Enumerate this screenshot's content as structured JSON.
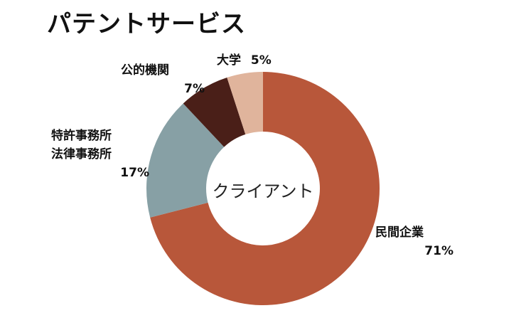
{
  "title": "パテントサービス",
  "chart_data": {
    "type": "pie",
    "donut": true,
    "center_label": "クライアント",
    "slices": [
      {
        "label_lines": [
          "民間企業"
        ],
        "value": 71,
        "value_text": "71%",
        "color": "#b8573a"
      },
      {
        "label_lines": [
          "特許事務所",
          "法律事務所"
        ],
        "value": 17,
        "value_text": "17%",
        "color": "#87a0a5"
      },
      {
        "label_lines": [
          "公的機関"
        ],
        "value": 7,
        "value_text": "7%",
        "color": "#4a1f18"
      },
      {
        "label_lines": [
          "大学"
        ],
        "value": 5,
        "value_text": "5%",
        "color": "#e0b49c"
      }
    ]
  }
}
